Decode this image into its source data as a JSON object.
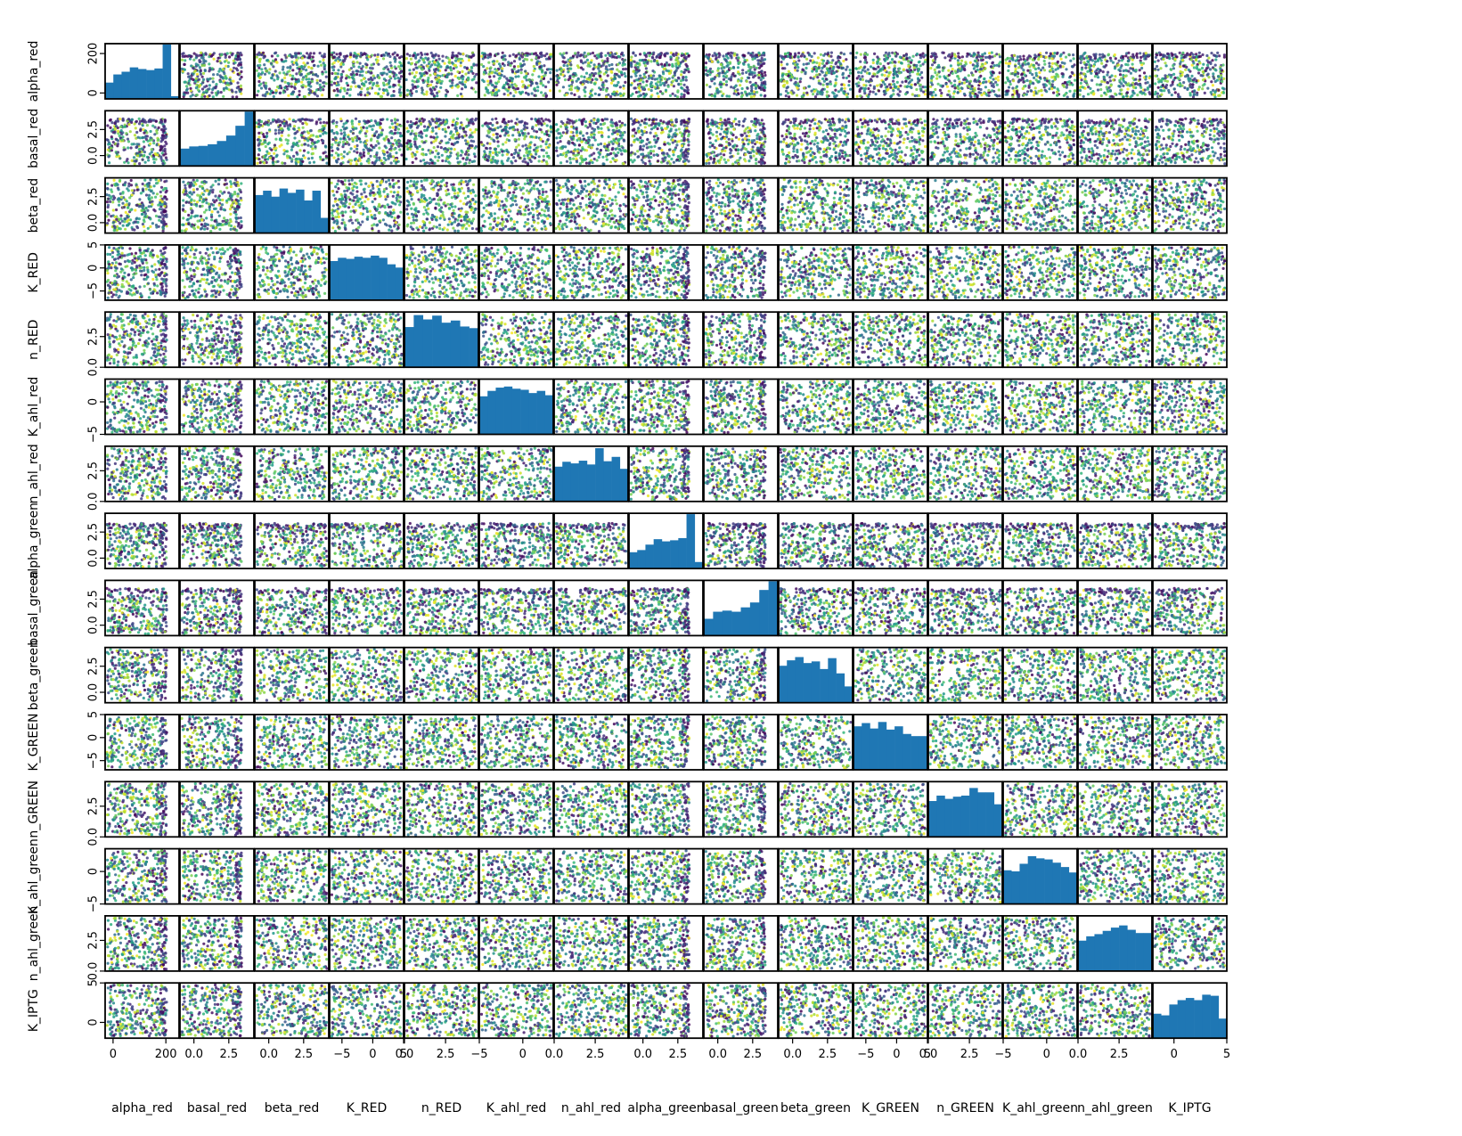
{
  "figure": {
    "description_type": "pair-plot (scatter matrix)"
  },
  "chart_data": {
    "type": "scatter",
    "layout": "pairplot",
    "variables": [
      "alpha_red",
      "basal_red",
      "beta_red",
      "K_RED",
      "n_RED",
      "K_ahl_red",
      "n_ahl_red",
      "alpha_green",
      "basal_green",
      "beta_green",
      "K_GREEN",
      "n_GREEN",
      "K_ahl_green",
      "n_ahl_green",
      "K_IPTG"
    ],
    "diagonal": {
      "type": "histogram",
      "color": "#1f77b4"
    },
    "off_diagonal": {
      "type": "scatter",
      "colormap": "viridis",
      "approx_points_per_panel": 300
    },
    "axes": {
      "alpha_red": {
        "range": [
          -30,
          250
        ],
        "ticks": [
          0,
          200
        ],
        "tick_labels": [
          "0",
          "200"
        ]
      },
      "basal_red": {
        "range": [
          -1.0,
          4.3
        ],
        "ticks": [
          0.0,
          2.5
        ],
        "tick_labels": [
          "0.0",
          "2.5"
        ]
      },
      "beta_red": {
        "range": [
          -1.0,
          4.3
        ],
        "ticks": [
          0.0,
          2.5
        ],
        "tick_labels": [
          "0.0",
          "2.5"
        ]
      },
      "K_RED": {
        "range": [
          -7,
          5
        ],
        "ticks": [
          -5,
          0,
          5
        ],
        "tick_labels": [
          "−5",
          "0",
          "5"
        ]
      },
      "n_RED": {
        "range": [
          0,
          4.5
        ],
        "ticks": [
          0.0,
          2.5
        ],
        "tick_labels": [
          "0.0",
          "2.5"
        ]
      },
      "K_ahl_red": {
        "range": [
          -5,
          3.5
        ],
        "ticks": [
          -5,
          0
        ],
        "tick_labels": [
          "−5",
          "0"
        ]
      },
      "n_ahl_red": {
        "range": [
          0,
          4.5
        ],
        "ticks": [
          0.0,
          2.5
        ],
        "tick_labels": [
          "0.0",
          "2.5"
        ]
      },
      "alpha_green": {
        "range": [
          -1.0,
          4.3
        ],
        "ticks": [
          0.0,
          2.5
        ],
        "tick_labels": [
          "0.0",
          "2.5"
        ]
      },
      "basal_green": {
        "range": [
          -1.0,
          4.3
        ],
        "ticks": [
          0.0,
          2.5
        ],
        "tick_labels": [
          "0.0",
          "2.5"
        ]
      },
      "beta_green": {
        "range": [
          -1.0,
          4.3
        ],
        "ticks": [
          0.0,
          2.5
        ],
        "tick_labels": [
          "0.0",
          "2.5"
        ]
      },
      "K_GREEN": {
        "range": [
          -7,
          5
        ],
        "ticks": [
          -5,
          0,
          5
        ],
        "tick_labels": [
          "−5",
          "0",
          "5"
        ]
      },
      "n_GREEN": {
        "range": [
          0,
          4.5
        ],
        "ticks": [
          0.0,
          2.5
        ],
        "tick_labels": [
          "0.0",
          "2.5"
        ]
      },
      "K_ahl_green": {
        "range": [
          -5,
          3.5
        ],
        "ticks": [
          -5,
          0
        ],
        "tick_labels": [
          "−5",
          "0"
        ]
      },
      "n_ahl_green": {
        "range": [
          0,
          4.5
        ],
        "ticks": [
          0.0,
          2.5
        ],
        "tick_labels": [
          "0.0",
          "2.5"
        ]
      },
      "K_IPTG": {
        "range": [
          -2,
          5
        ],
        "ticks": [
          0,
          5
        ],
        "tick_labels": [
          "0",
          "5"
        ]
      }
    },
    "histograms": {
      "alpha_red": [
        0.3,
        0.45,
        0.5,
        0.58,
        0.55,
        0.53,
        0.56,
        1.0,
        0.05
      ],
      "basal_red": [
        0.32,
        0.36,
        0.37,
        0.4,
        0.46,
        0.56,
        0.74,
        1.0
      ],
      "beta_red": [
        0.7,
        0.78,
        0.67,
        0.82,
        0.74,
        0.8,
        0.6,
        0.78,
        0.28
      ],
      "K_RED": [
        0.72,
        0.78,
        0.76,
        0.8,
        0.78,
        0.82,
        0.78,
        0.66,
        0.6
      ],
      "n_RED": [
        0.74,
        0.96,
        0.88,
        0.95,
        0.82,
        0.86,
        0.75,
        0.72
      ],
      "K_ahl_red": [
        0.7,
        0.8,
        0.86,
        0.88,
        0.84,
        0.82,
        0.76,
        0.8,
        0.72
      ],
      "n_ahl_red": [
        0.64,
        0.73,
        0.7,
        0.75,
        0.68,
        0.98,
        0.74,
        0.82,
        0.6
      ],
      "alpha_green": [
        0.3,
        0.34,
        0.44,
        0.54,
        0.5,
        0.52,
        0.56,
        1.0,
        0.12
      ],
      "basal_green": [
        0.31,
        0.44,
        0.46,
        0.44,
        0.52,
        0.61,
        0.84,
        1.0
      ],
      "beta_green": [
        0.68,
        0.78,
        0.84,
        0.73,
        0.76,
        0.62,
        0.82,
        0.54,
        0.3
      ],
      "K_GREEN": [
        0.8,
        0.86,
        0.76,
        0.88,
        0.74,
        0.8,
        0.66,
        0.62,
        0.62
      ],
      "n_GREEN": [
        0.66,
        0.76,
        0.7,
        0.74,
        0.76,
        0.9,
        0.82,
        0.82,
        0.6
      ],
      "K_ahl_green": [
        0.62,
        0.6,
        0.74,
        0.88,
        0.84,
        0.82,
        0.76,
        0.68,
        0.58
      ],
      "n_ahl_green": [
        0.56,
        0.64,
        0.68,
        0.74,
        0.8,
        0.84,
        0.76,
        0.7,
        0.7
      ],
      "K_IPTG": [
        0.45,
        0.42,
        0.62,
        0.7,
        0.74,
        0.7,
        0.8,
        0.78,
        0.36
      ]
    }
  }
}
